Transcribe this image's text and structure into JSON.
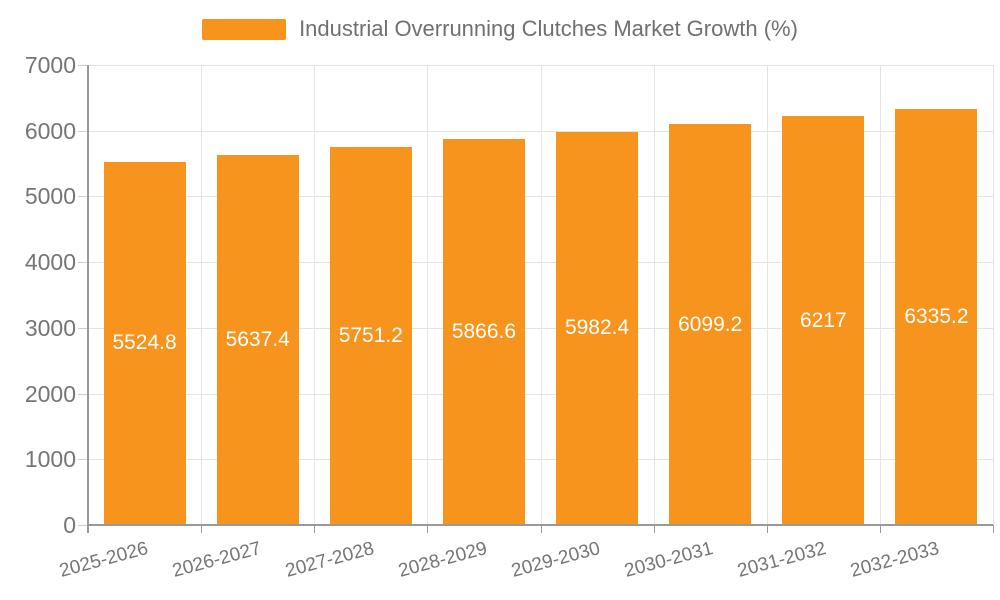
{
  "legend": {
    "label": "Industrial Overrunning Clutches Market Growth (%)"
  },
  "colors": {
    "bar": "#F7941E",
    "grid": "#E4E4E4",
    "axis": "#999999",
    "ytick": "#CCCCCC",
    "axis_text": "#757575",
    "legend_text": "#707070",
    "value_label_text": "#FFFFFF",
    "background": "#FFFFFF"
  },
  "chart_data": {
    "type": "bar",
    "title": "Industrial Overrunning Clutches Market Growth (%)",
    "categories": [
      "2025-2026",
      "2026-2027",
      "2027-2028",
      "2028-2029",
      "2029-2030",
      "2030-2031",
      "2031-2032",
      "2032-2033"
    ],
    "values": [
      5524.8,
      5637.4,
      5751.2,
      5866.6,
      5982.4,
      6099.2,
      6217,
      6335.2
    ],
    "value_labels": [
      "5524.8",
      "5637.4",
      "5751.2",
      "5866.6",
      "5982.4",
      "6099.2",
      "6217",
      "6335.2"
    ],
    "xlabel": "",
    "ylabel": "",
    "ylim": [
      0,
      7000
    ],
    "yticks": [
      0,
      1000,
      2000,
      3000,
      4000,
      5000,
      6000,
      7000
    ],
    "grid": true,
    "legend_position": "top-center",
    "series_color": "#F7941E",
    "value_label_position": "inside-center"
  }
}
